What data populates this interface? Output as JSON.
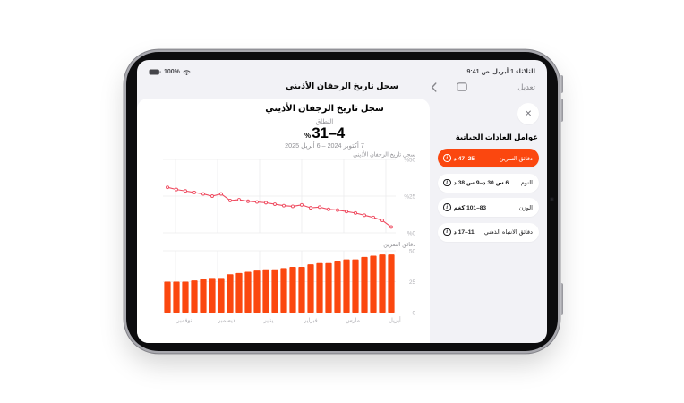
{
  "status_bar": {
    "time": "9:41 ص",
    "date": "الثلاثاء 1 أبريل",
    "battery_percent": "100%"
  },
  "nav_bar": {
    "edit_label": "تعديل",
    "title": "سجل تاريخ الرجفان الأذيني"
  },
  "sheet": {
    "title": "سجل تاريخ الرجفان الأذيني",
    "range_label": "النطاق",
    "range_value": "4–31",
    "range_unit": "%",
    "range_min": 4,
    "range_max": 31,
    "date_range": "7 أكتوبر 2024 – 6 أبريل 2025"
  },
  "panel": {
    "heading": "عوامل العادات الحياتية",
    "close_glyph": "✕",
    "items": [
      {
        "label": "دقائق التمرين",
        "value": "25–47 د",
        "selected": true
      },
      {
        "label": "النوم",
        "value": "6 س 30 د–9 س 38 د",
        "selected": false
      },
      {
        "label": "الوزن",
        "value": "83–101 كغم",
        "selected": false
      },
      {
        "label": "دقائق الانتباه الذهني",
        "value": "11–17 د",
        "selected": false
      }
    ]
  },
  "colors": {
    "accent_orange": "#fb470f",
    "line_red": "#ef4a5f",
    "panel_bg": "#f2f2f6",
    "card_bg": "#ffffff",
    "grid": "#ececee",
    "axis_text": "#b0b0b5",
    "muted_text": "#8e8e93"
  },
  "chart_data": [
    {
      "type": "line",
      "title": "سجل تاريخ الرجفان الأذيني",
      "unit": "%",
      "ylim": [
        0,
        50
      ],
      "yticks": [
        "%50",
        "%25",
        "%0"
      ],
      "categories": [
        "نوفمبر",
        "ديسمبر",
        "يناير",
        "فبراير",
        "مارس",
        "أبريل"
      ],
      "period": "7 أكتوبر 2024 – 6 أبريل 2025",
      "values": [
        31,
        29.5,
        28.5,
        27.5,
        26.5,
        25,
        26.5,
        22,
        22.5,
        21.5,
        21,
        20.5,
        19.5,
        18.5,
        18,
        19,
        17,
        17.5,
        16,
        15.5,
        14.5,
        13.5,
        12,
        10.5,
        8.5,
        4
      ]
    },
    {
      "type": "bar",
      "title": "دقائق التمرين",
      "unit": "د",
      "ylim": [
        0,
        50
      ],
      "yticks": [
        "50",
        "25",
        "0"
      ],
      "categories": [
        "نوفمبر",
        "ديسمبر",
        "يناير",
        "فبراير",
        "مارس",
        "أبريل"
      ],
      "values": [
        25,
        25,
        25,
        26,
        27,
        28,
        28,
        31,
        32,
        33,
        34,
        35,
        35,
        36,
        37,
        37,
        39,
        40,
        40,
        42,
        43,
        43,
        45,
        46,
        47,
        47
      ]
    }
  ]
}
